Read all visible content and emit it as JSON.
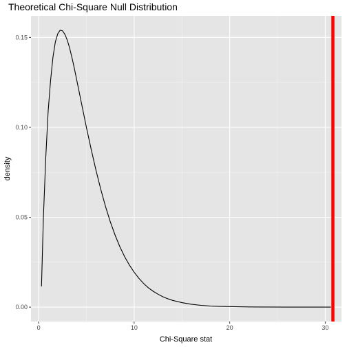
{
  "chart_data": {
    "type": "line",
    "title": "Theoretical Chi-Square Null Distribution",
    "xlabel": "Chi-Square stat",
    "ylabel": "density",
    "xlim": [
      -0.8,
      31.7
    ],
    "ylim": [
      -0.008,
      0.162
    ],
    "x_ticks": [
      0,
      10,
      20,
      30
    ],
    "x_tick_labels": [
      "0",
      "10",
      "20",
      "30"
    ],
    "y_ticks": [
      0.0,
      0.05,
      0.1,
      0.15
    ],
    "y_tick_labels": [
      "0.00",
      "0.05",
      "0.10",
      "0.15"
    ],
    "grid": true,
    "colors": {
      "panel_background": "#e5e5e5",
      "grid_major": "#ffffff",
      "grid_minor": "#f2f2f2",
      "curve": "#000000",
      "observed_line": "#ff0000",
      "tick": "#333333"
    },
    "series": [
      {
        "x": [
          0.3,
          0.5,
          0.75,
          1.0,
          1.25,
          1.5,
          1.75,
          2.0,
          2.25,
          2.5,
          2.75,
          3.0,
          3.25,
          3.5,
          3.75,
          4.0,
          4.5,
          5.0,
          5.5,
          6.0,
          6.5,
          7.0,
          7.5,
          8.0,
          8.5,
          9.0,
          9.5,
          10.0,
          10.5,
          11.0,
          11.5,
          12.0,
          12.5,
          13.0,
          13.5,
          14.0,
          15.0,
          16.0,
          17.0,
          18.0,
          19.0,
          20.0,
          22.0,
          24.0,
          26.0,
          28.0,
          30.0,
          30.6
        ],
        "y": [
          0.0115,
          0.05,
          0.0835,
          0.1092,
          0.126,
          0.139,
          0.1475,
          0.152,
          0.154,
          0.1537,
          0.1517,
          0.1485,
          0.144,
          0.1385,
          0.1325,
          0.126,
          0.113,
          0.1,
          0.0878,
          0.0762,
          0.0656,
          0.056,
          0.0475,
          0.0401,
          0.0336,
          0.0281,
          0.0234,
          0.0194,
          0.016,
          0.0131,
          0.0107,
          0.0088,
          0.0072,
          0.0058,
          0.0047,
          0.0038,
          0.0025,
          0.0016,
          0.001,
          0.0006,
          0.0004,
          0.0003,
          0.0001,
          5e-05,
          2e-05,
          1e-05,
          0.0,
          0.0
        ]
      }
    ],
    "observed_statistic": 30.8
  }
}
